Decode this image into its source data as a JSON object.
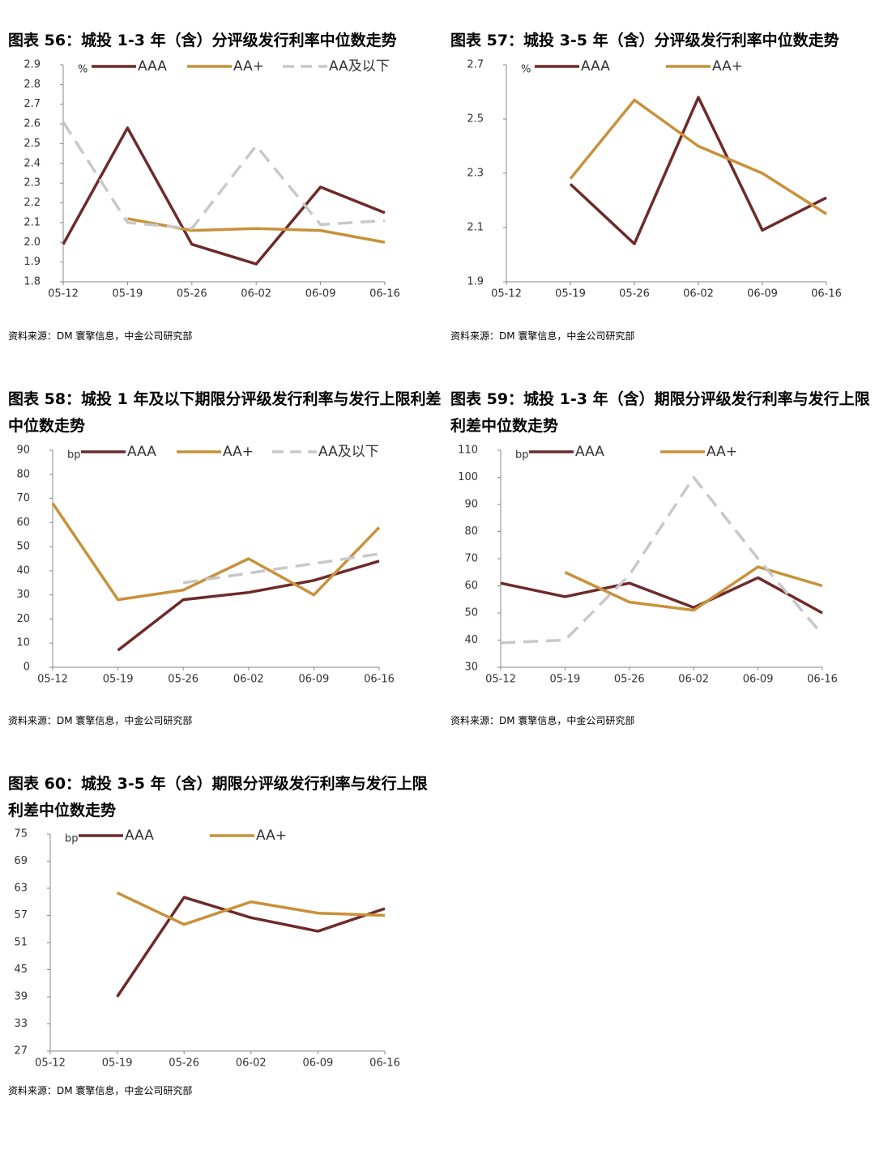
{
  "chart_data": [
    {
      "type": "line",
      "title": "图表 56：城投 1-3 年（含）分评级发行利率中位数走势",
      "unit": "%",
      "note": "资料来源：DM 寰擎信息，中金公司研究部",
      "categories": [
        "05-12",
        "05-19",
        "05-26",
        "06-02",
        "06-09",
        "06-16"
      ],
      "series": [
        {
          "name": "AAA",
          "color": "#6e2a2a",
          "dashed": false,
          "values": [
            1.99,
            2.58,
            1.99,
            1.89,
            2.28,
            2.15
          ]
        },
        {
          "name": "AA+",
          "color": "#c8913a",
          "dashed": false,
          "values": [
            null,
            2.12,
            2.06,
            2.07,
            2.06,
            2.0
          ]
        },
        {
          "name": "AA及以下",
          "color": "#c8c8c8",
          "dashed": true,
          "values": [
            2.61,
            2.1,
            2.07,
            2.49,
            2.09,
            2.11
          ]
        }
      ],
      "ylim": [
        1.8,
        2.9
      ],
      "yticks": [
        1.8,
        1.9,
        {
          "value": 2,
          "label": "2.0"
        },
        2.1,
        2.2,
        2.3,
        2.4,
        2.5,
        2.6,
        2.7,
        2.8,
        2.9
      ]
    },
    {
      "type": "line",
      "title": "图表 57：城投 3-5 年（含）分评级发行利率中位数走势",
      "unit": "%",
      "note": "资料来源：DM 寰擎信息，中金公司研究部",
      "categories": [
        "05-12",
        "05-19",
        "05-26",
        "06-02",
        "06-09",
        "06-16"
      ],
      "series": [
        {
          "name": "AAA",
          "color": "#6e2a2a",
          "dashed": false,
          "values": [
            null,
            2.26,
            2.04,
            2.58,
            2.09,
            2.21
          ]
        },
        {
          "name": "AA+",
          "color": "#c8913a",
          "dashed": false,
          "values": [
            null,
            2.28,
            2.57,
            2.4,
            2.3,
            2.15
          ]
        }
      ],
      "ylim": [
        1.9,
        2.7
      ],
      "yticks": [
        1.9,
        2.1,
        2.3,
        2.5,
        2.7
      ]
    },
    {
      "type": "line",
      "title": "图表 58：城投 1 年及以下期限分评级发行利率与发行上限利差中位数走势",
      "unit": "bp",
      "note": "资料来源：DM 寰擎信息，中金公司研究部",
      "categories": [
        "05-12",
        "05-19",
        "05-26",
        "06-02",
        "06-09",
        "06-16"
      ],
      "series": [
        {
          "name": "AAA",
          "color": "#6e2a2a",
          "dashed": false,
          "values": [
            null,
            7,
            28,
            31,
            36,
            44
          ]
        },
        {
          "name": "AA+",
          "color": "#c8913a",
          "dashed": false,
          "values": [
            68,
            28,
            32,
            45,
            30,
            58
          ]
        },
        {
          "name": "AA及以下",
          "color": "#c8c8c8",
          "dashed": true,
          "values": [
            null,
            null,
            35,
            39,
            43,
            47
          ]
        }
      ],
      "ylim": [
        0,
        90
      ],
      "yticks": [
        0,
        10,
        20,
        30,
        40,
        50,
        60,
        70,
        80,
        90
      ]
    },
    {
      "type": "line",
      "title": "图表 59：城投 1-3 年（含）期限分评级发行利率与发行上限利差中位数走势",
      "unit": "bp",
      "note": "资料来源：DM 寰擎信息，中金公司研究部",
      "categories": [
        "05-12",
        "05-19",
        "05-26",
        "06-02",
        "06-09",
        "06-16"
      ],
      "series": [
        {
          "name": "AAA",
          "color": "#6e2a2a",
          "dashed": false,
          "values": [
            61,
            56,
            61,
            52,
            63,
            50
          ]
        },
        {
          "name": "AA+",
          "color": "#c8913a",
          "dashed": false,
          "values": [
            null,
            65,
            54,
            51,
            67,
            60
          ]
        },
        {
          "color": "#c8c8c8",
          "dashed": true,
          "values": [
            39,
            40,
            64,
            100,
            70,
            42
          ]
        }
      ],
      "ylim": [
        30,
        110
      ],
      "yticks": [
        30,
        40,
        50,
        60,
        70,
        80,
        90,
        100,
        110
      ]
    },
    {
      "type": "line",
      "title": "图表 60：城投 3-5 年（含）期限分评级发行利率与发行上限利差中位数走势",
      "unit": "bp",
      "note": "资料来源：DM 寰擎信息，中金公司研究部",
      "categories": [
        "05-12",
        "05-19",
        "05-26",
        "06-02",
        "06-09",
        "06-16"
      ],
      "series": [
        {
          "name": "AAA",
          "color": "#6e2a2a",
          "dashed": false,
          "values": [
            null,
            39,
            61,
            56.5,
            53.5,
            58.5
          ]
        },
        {
          "name": "AA+",
          "color": "#c8913a",
          "dashed": false,
          "values": [
            null,
            62,
            55,
            60,
            57.5,
            57
          ]
        }
      ],
      "ylim": [
        27,
        75
      ],
      "yticks": [
        27,
        33,
        39,
        45,
        51,
        57,
        63,
        69,
        75
      ]
    }
  ]
}
